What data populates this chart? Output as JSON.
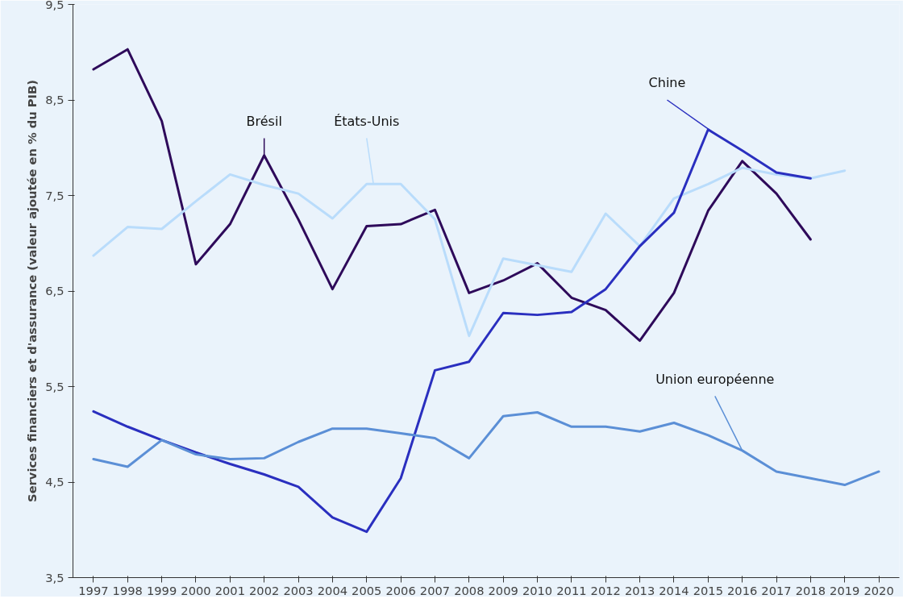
{
  "chart_data": {
    "type": "line",
    "ylabel": "Services financiers et d'assurance (valeur ajoutée en % du PIB)",
    "categories": [
      "1997",
      "1998",
      "1999",
      "2000",
      "2001",
      "2002",
      "2003",
      "2004",
      "2005",
      "2006",
      "2007",
      "2008",
      "2009",
      "2010",
      "2011",
      "2012",
      "2013",
      "2014",
      "2015",
      "2016",
      "2017",
      "2018",
      "2019",
      "2020"
    ],
    "ylim": [
      3.5,
      9.5
    ],
    "yticks": [
      {
        "value": 3.5,
        "label": "3,5"
      },
      {
        "value": 4.5,
        "label": "4,5"
      },
      {
        "value": 5.5,
        "label": "5,5"
      },
      {
        "value": 6.5,
        "label": "6,5"
      },
      {
        "value": 7.5,
        "label": "7,5"
      },
      {
        "value": 8.5,
        "label": "8,5"
      },
      {
        "value": 9.5,
        "label": "9,5"
      }
    ],
    "grid": false,
    "legend": false,
    "marker": "none",
    "line_style": "solid",
    "series": [
      {
        "name": "Brésil",
        "color": "#2e0a5a",
        "values": [
          8.82,
          9.03,
          8.28,
          6.78,
          7.2,
          7.92,
          7.25,
          6.52,
          7.18,
          7.2,
          7.35,
          6.48,
          6.61,
          6.79,
          6.43,
          6.3,
          5.98,
          6.48,
          7.34,
          7.86,
          7.52,
          7.04,
          null,
          null
        ]
      },
      {
        "name": "États-Unis",
        "color": "#b9dcfb",
        "values": [
          6.87,
          7.17,
          7.15,
          7.44,
          7.72,
          7.61,
          7.52,
          7.26,
          7.62,
          7.62,
          7.25,
          6.03,
          6.84,
          6.77,
          6.7,
          7.31,
          6.97,
          7.47,
          7.62,
          7.79,
          7.72,
          7.68,
          7.76,
          null
        ]
      },
      {
        "name": "Chine",
        "color": "#2a2fbf",
        "values": [
          5.24,
          5.08,
          4.94,
          4.81,
          4.69,
          4.58,
          4.45,
          4.13,
          3.98,
          4.54,
          5.67,
          5.76,
          6.27,
          6.25,
          6.28,
          6.52,
          6.97,
          7.32,
          8.19,
          7.97,
          7.74,
          7.68,
          null,
          null
        ]
      },
      {
        "name": "Union européenne",
        "color": "#5b8fd6",
        "values": [
          4.74,
          4.66,
          4.94,
          4.79,
          4.74,
          4.75,
          4.92,
          5.06,
          5.06,
          5.01,
          4.96,
          4.75,
          5.19,
          5.23,
          5.08,
          5.08,
          5.03,
          5.12,
          4.99,
          4.83,
          4.61,
          4.54,
          4.47,
          4.61
        ]
      }
    ]
  }
}
